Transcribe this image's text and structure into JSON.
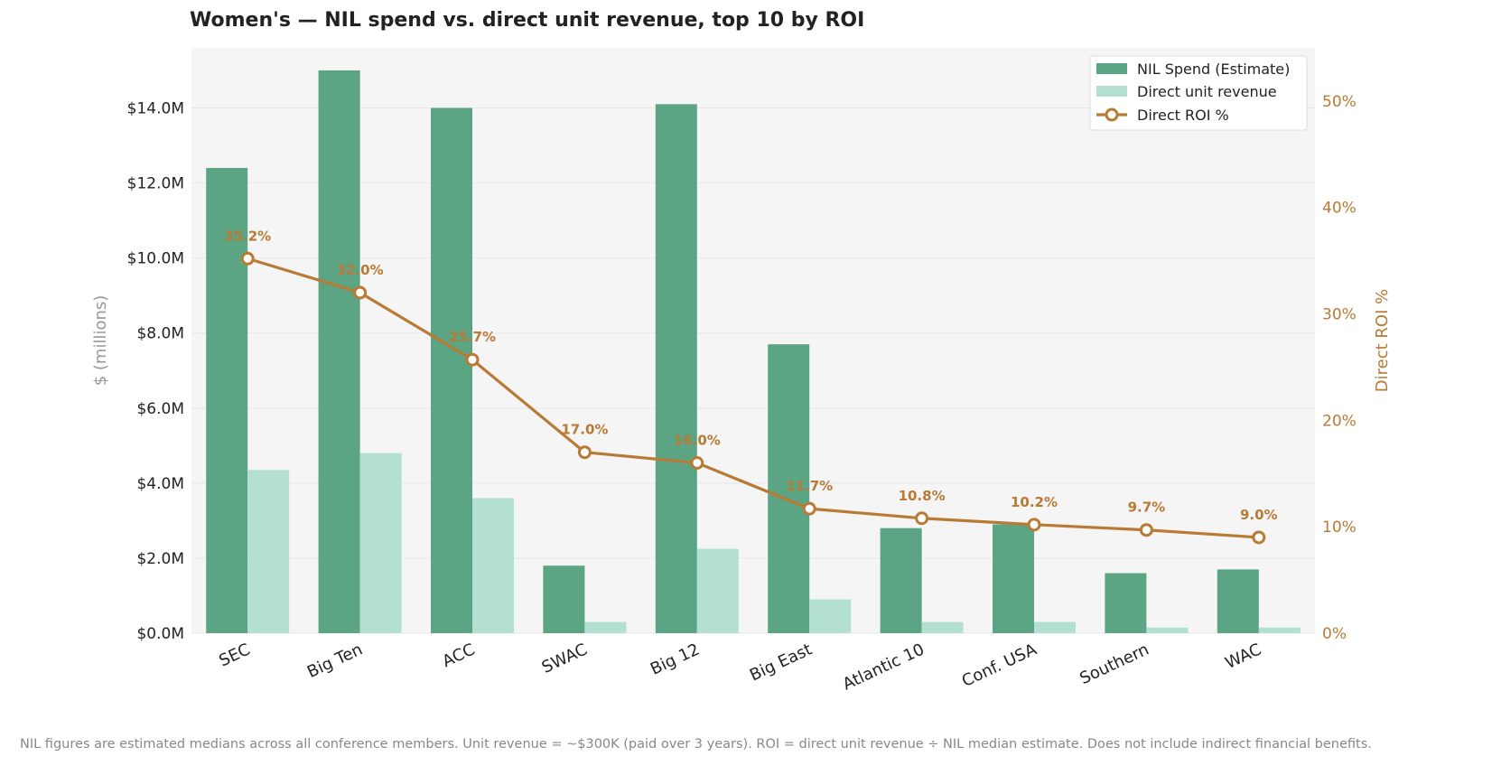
{
  "chart_data": {
    "type": "bar",
    "title": "Women's — NIL spend vs. direct unit revenue, top 10 by ROI",
    "categories": [
      "SEC",
      "Big Ten",
      "ACC",
      "SWAC",
      "Big 12",
      "Big East",
      "Atlantic 10",
      "Conf. USA",
      "Southern",
      "WAC"
    ],
    "series": [
      {
        "name": "NIL Spend (Estimate)",
        "axis": "left",
        "kind": "bar",
        "color": "#5ba585",
        "values": [
          12.4,
          15.0,
          14.0,
          1.8,
          14.1,
          7.7,
          2.8,
          2.9,
          1.6,
          1.7
        ]
      },
      {
        "name": "Direct unit revenue",
        "axis": "left",
        "kind": "bar",
        "color": "#b3e0d0",
        "values": [
          4.35,
          4.8,
          3.6,
          0.3,
          2.25,
          0.9,
          0.3,
          0.3,
          0.15,
          0.15
        ]
      },
      {
        "name": "Direct ROI %",
        "axis": "right",
        "kind": "line",
        "color": "#b87a35",
        "values": [
          35.2,
          32.0,
          25.7,
          17.0,
          16.0,
          11.7,
          10.8,
          10.2,
          9.7,
          9.0
        ],
        "labels": [
          "35.2%",
          "32.0%",
          "25.7%",
          "17.0%",
          "16.0%",
          "11.7%",
          "10.8%",
          "10.2%",
          "9.7%",
          "9.0%"
        ]
      }
    ],
    "ylabel": "$ (millions)",
    "ylim": [
      0,
      15.6
    ],
    "y_ticks": [
      0,
      2,
      4,
      6,
      8,
      10,
      12,
      14
    ],
    "y_tick_labels": [
      "$0.0M",
      "$2.0M",
      "$4.0M",
      "$6.0M",
      "$8.0M",
      "$10.0M",
      "$12.0M",
      "$14.0M"
    ],
    "y2label": "Direct ROI %",
    "y2lim": [
      0,
      55
    ],
    "y2_ticks": [
      0,
      10,
      20,
      30,
      40,
      50
    ],
    "y2_tick_labels": [
      "0%",
      "10%",
      "20%",
      "30%",
      "40%",
      "50%"
    ],
    "legend_position": "top-right",
    "grid": true
  },
  "colors": {
    "plot_bg": "#f5f5f5",
    "grid": "#e8e8e8",
    "roi": "#b87a35",
    "ylabel": "#999999"
  },
  "footnote": "NIL figures are estimated medians across all conference members. Unit revenue = ~$300K (paid over 3 years). ROI = direct unit revenue ÷ NIL median estimate. Does not include indirect financial benefits."
}
